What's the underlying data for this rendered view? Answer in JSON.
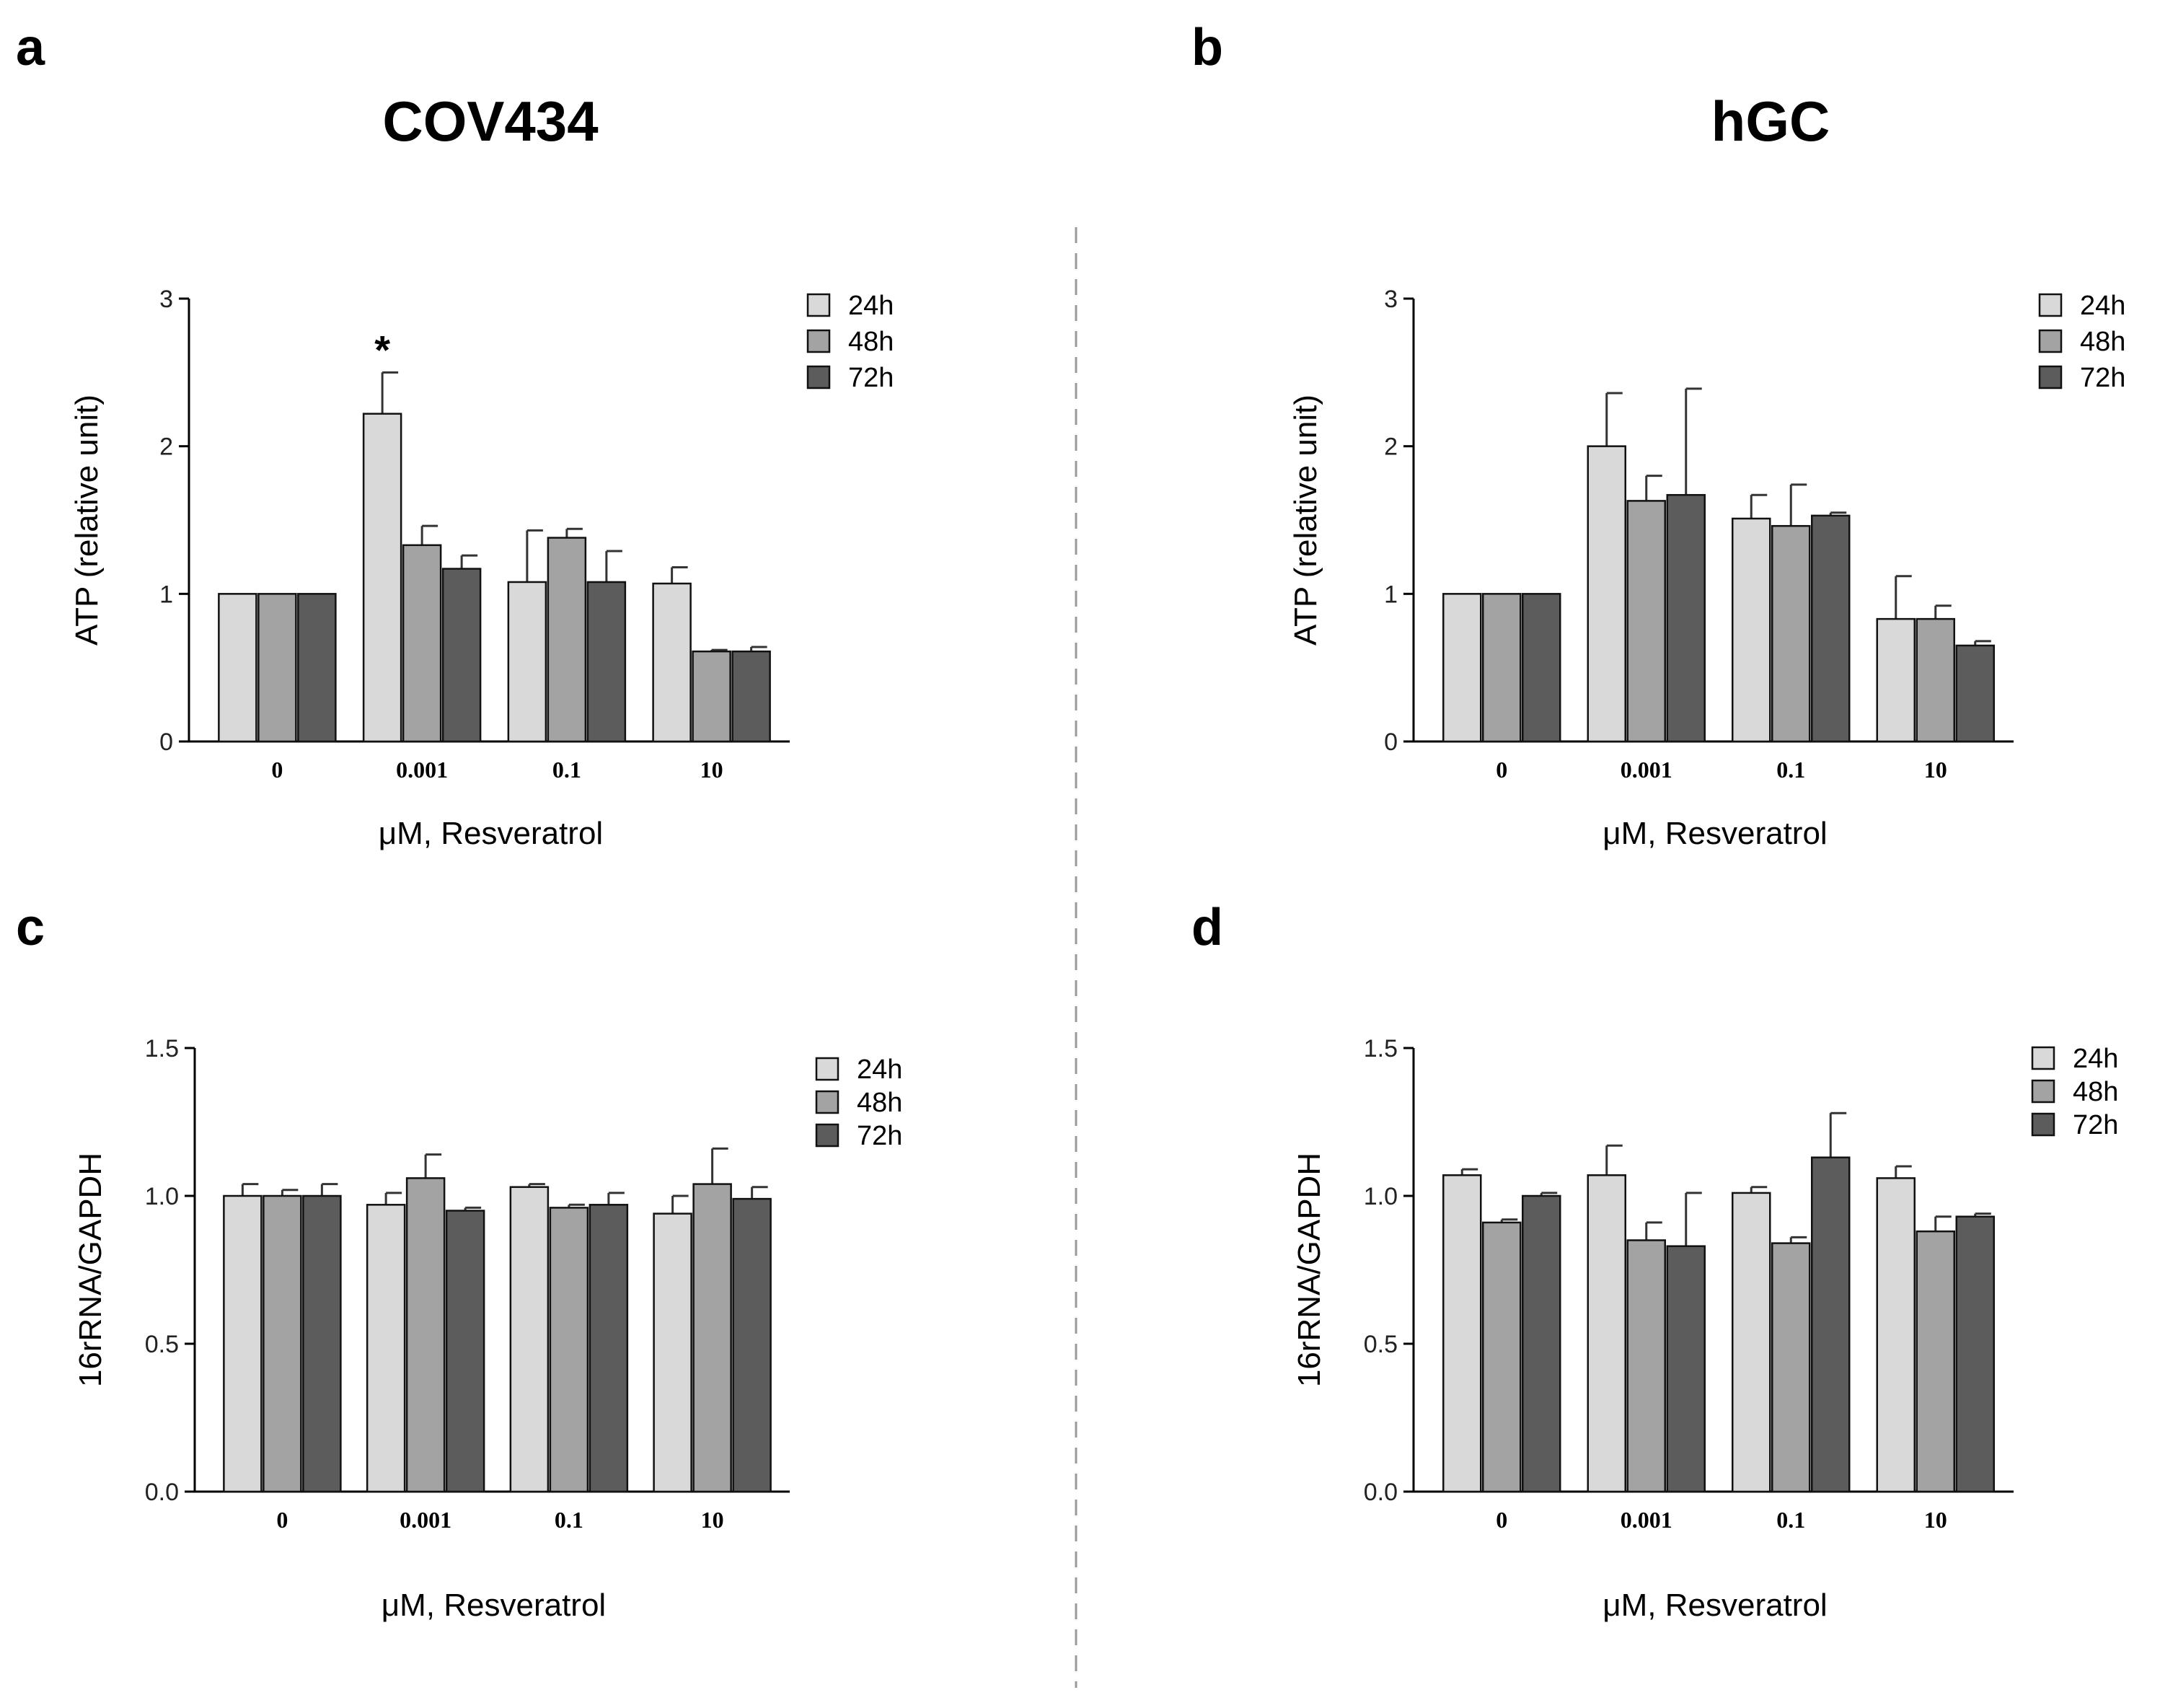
{
  "column_titles": [
    "COV434",
    "hGC"
  ],
  "divider": {
    "style": "dashed",
    "color": "#999999"
  },
  "colors": {
    "24h": "#d9d9d9",
    "48h": "#a3a3a3",
    "72h": "#5c5c5c",
    "axis": "#000000",
    "errorbar": "#333333"
  },
  "chart_data": [
    {
      "panel_label": "a",
      "type": "bar",
      "categories": [
        "0",
        "0.001",
        "0.1",
        "10"
      ],
      "ylabel": "ATP (relative unit)",
      "xlabel": "μM, Resveratrol",
      "ylim": [
        0,
        3
      ],
      "yticks": [
        "0",
        "1",
        "2",
        "3"
      ],
      "legend": "top-right",
      "series": [
        {
          "name": "24h",
          "color": "#d9d9d9",
          "values": [
            1.0,
            2.22,
            1.08,
            1.07
          ],
          "errors": [
            0,
            0.28,
            0.35,
            0.11
          ]
        },
        {
          "name": "48h",
          "color": "#a3a3a3",
          "values": [
            1.0,
            1.33,
            1.38,
            0.61
          ],
          "errors": [
            0,
            0.13,
            0.06,
            0.01
          ]
        },
        {
          "name": "72h",
          "color": "#5c5c5c",
          "values": [
            1.0,
            1.17,
            1.08,
            0.61
          ],
          "errors": [
            0,
            0.09,
            0.21,
            0.03
          ]
        }
      ],
      "annotations": [
        {
          "text": "*",
          "category": "0.001",
          "series": "24h"
        }
      ]
    },
    {
      "panel_label": "b",
      "type": "bar",
      "categories": [
        "0",
        "0.001",
        "0.1",
        "10"
      ],
      "ylabel": "ATP (relative unit)",
      "xlabel": "μM, Resveratrol",
      "ylim": [
        0,
        3
      ],
      "yticks": [
        "0",
        "1",
        "2",
        "3"
      ],
      "legend": "top-right",
      "series": [
        {
          "name": "24h",
          "color": "#d9d9d9",
          "values": [
            1.0,
            2.0,
            1.51,
            0.83
          ],
          "errors": [
            0,
            0.36,
            0.16,
            0.29
          ]
        },
        {
          "name": "48h",
          "color": "#a3a3a3",
          "values": [
            1.0,
            1.63,
            1.46,
            0.83
          ],
          "errors": [
            0,
            0.17,
            0.28,
            0.09
          ]
        },
        {
          "name": "72h",
          "color": "#5c5c5c",
          "values": [
            1.0,
            1.67,
            1.53,
            0.65
          ],
          "errors": [
            0,
            0.72,
            0.02,
            0.03
          ]
        }
      ],
      "annotations": []
    },
    {
      "panel_label": "c",
      "type": "bar",
      "categories": [
        "0",
        "0.001",
        "0.1",
        "10"
      ],
      "ylabel": "16rRNA/GAPDH",
      "xlabel": "μM, Resveratrol",
      "ylim": [
        0,
        1.5
      ],
      "yticks": [
        "0.0",
        "0.5",
        "1.0",
        "1.5"
      ],
      "legend": "top-right",
      "series": [
        {
          "name": "24h",
          "color": "#d9d9d9",
          "values": [
            1.0,
            0.97,
            1.03,
            0.94
          ],
          "errors": [
            0.04,
            0.04,
            0.01,
            0.06
          ]
        },
        {
          "name": "48h",
          "color": "#a3a3a3",
          "values": [
            1.0,
            1.06,
            0.96,
            1.04
          ],
          "errors": [
            0.02,
            0.08,
            0.01,
            0.12
          ]
        },
        {
          "name": "72h",
          "color": "#5c5c5c",
          "values": [
            1.0,
            0.95,
            0.97,
            0.99
          ],
          "errors": [
            0.04,
            0.01,
            0.04,
            0.04
          ]
        }
      ],
      "annotations": []
    },
    {
      "panel_label": "d",
      "type": "bar",
      "categories": [
        "0",
        "0.001",
        "0.1",
        "10"
      ],
      "ylabel": "16rRNA/GAPDH",
      "xlabel": "μM, Resveratrol",
      "ylim": [
        0,
        1.5
      ],
      "yticks": [
        "0.0",
        "0.5",
        "1.0",
        "1.5"
      ],
      "legend": "top-right",
      "series": [
        {
          "name": "24h",
          "color": "#d9d9d9",
          "values": [
            1.07,
            1.07,
            1.01,
            1.06
          ],
          "errors": [
            0.02,
            0.1,
            0.02,
            0.04
          ]
        },
        {
          "name": "48h",
          "color": "#a3a3a3",
          "values": [
            0.91,
            0.85,
            0.84,
            0.88
          ],
          "errors": [
            0.01,
            0.06,
            0.02,
            0.05
          ]
        },
        {
          "name": "72h",
          "color": "#5c5c5c",
          "values": [
            1.0,
            0.83,
            1.13,
            0.93
          ],
          "errors": [
            0.01,
            0.18,
            0.15,
            0.01
          ]
        }
      ],
      "annotations": []
    }
  ]
}
